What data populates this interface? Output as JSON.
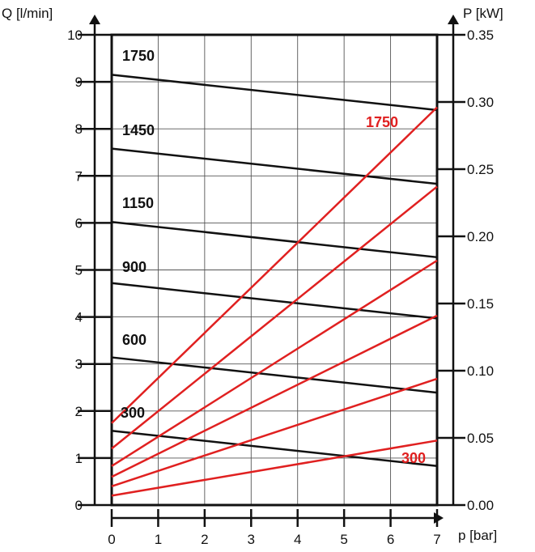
{
  "chart_data": {
    "type": "line",
    "x_axis": {
      "label": "p [bar]",
      "range": [
        0,
        7
      ],
      "ticks": [
        "0",
        "1",
        "2",
        "3",
        "4",
        "5",
        "6",
        "7"
      ]
    },
    "y_axis_left": {
      "label": "Q [l/min]",
      "range": [
        0,
        10
      ],
      "ticks": [
        "0",
        "1",
        "2",
        "3",
        "4",
        "5",
        "6",
        "7",
        "8",
        "9",
        "10"
      ]
    },
    "y_axis_right": {
      "label": "P [kW]",
      "range": [
        0,
        0.35
      ],
      "ticks": [
        "0.00",
        "0.05",
        "0.10",
        "0.15",
        "0.20",
        "0.25",
        "0.30",
        "0.35"
      ]
    },
    "grid": true,
    "flow_series": [
      {
        "name": "1750",
        "axis": "left",
        "color": "#111111",
        "x": [
          0,
          7
        ],
        "y": [
          9.15,
          8.4
        ]
      },
      {
        "name": "1450",
        "axis": "left",
        "color": "#111111",
        "x": [
          0,
          7
        ],
        "y": [
          7.58,
          6.83
        ]
      },
      {
        "name": "1150",
        "axis": "left",
        "color": "#111111",
        "x": [
          0,
          7
        ],
        "y": [
          6.02,
          5.27
        ]
      },
      {
        "name": "900",
        "axis": "left",
        "color": "#111111",
        "x": [
          0,
          7
        ],
        "y": [
          4.72,
          3.97
        ]
      },
      {
        "name": "600",
        "axis": "left",
        "color": "#111111",
        "x": [
          0,
          7
        ],
        "y": [
          3.14,
          2.39
        ]
      },
      {
        "name": "300",
        "axis": "left",
        "color": "#111111",
        "x": [
          0,
          7
        ],
        "y": [
          1.58,
          0.83
        ]
      }
    ],
    "power_series": [
      {
        "name": "1750",
        "axis": "right",
        "color": "#e02020",
        "x": [
          0,
          7
        ],
        "y": [
          0.061,
          0.296
        ]
      },
      {
        "name": "1450",
        "axis": "right",
        "color": "#e02020",
        "x": [
          0,
          7
        ],
        "y": [
          0.042,
          0.237
        ]
      },
      {
        "name": "1150",
        "axis": "right",
        "color": "#e02020",
        "x": [
          0,
          7
        ],
        "y": [
          0.029,
          0.182
        ]
      },
      {
        "name": "900",
        "axis": "right",
        "color": "#e02020",
        "x": [
          0,
          7
        ],
        "y": [
          0.021,
          0.141
        ]
      },
      {
        "name": "600",
        "axis": "right",
        "color": "#e02020",
        "x": [
          0,
          7
        ],
        "y": [
          0.014,
          0.094
        ]
      },
      {
        "name": "300",
        "axis": "right",
        "color": "#e02020",
        "x": [
          0,
          7
        ],
        "y": [
          0.007,
          0.048
        ]
      }
    ],
    "labels": {
      "flow": [
        "1750",
        "1450",
        "1150",
        "900",
        "600",
        "300"
      ],
      "power_top": "1750",
      "power_bottom": "300"
    }
  }
}
